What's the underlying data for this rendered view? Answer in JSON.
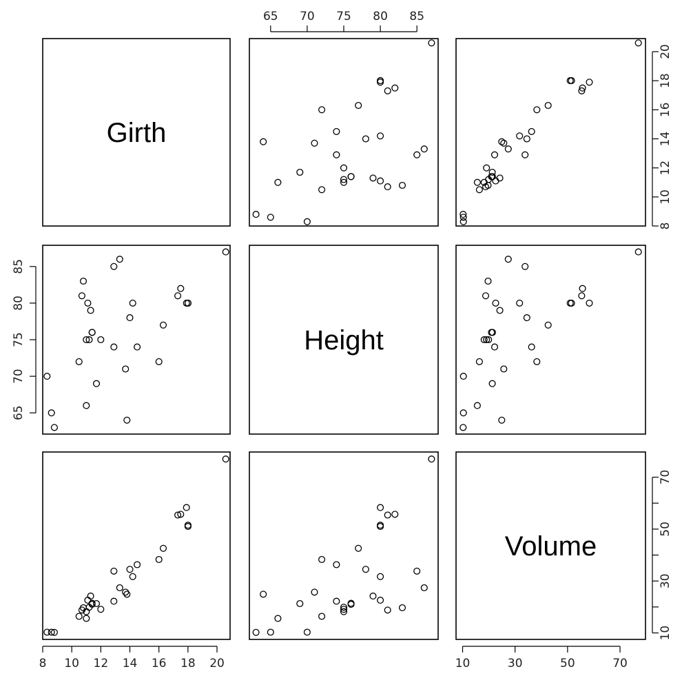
{
  "chart_data": {
    "type": "scatter",
    "variables": [
      "Girth",
      "Height",
      "Volume"
    ],
    "data": {
      "Girth": [
        8.3,
        8.6,
        8.8,
        10.5,
        10.7,
        10.8,
        11.0,
        11.0,
        11.1,
        11.2,
        11.3,
        11.4,
        11.4,
        11.7,
        12.0,
        12.9,
        12.9,
        13.3,
        13.7,
        13.8,
        14.0,
        14.2,
        14.5,
        16.0,
        16.3,
        17.3,
        17.5,
        17.9,
        18.0,
        18.0,
        20.6
      ],
      "Height": [
        70,
        65,
        63,
        72,
        81,
        83,
        66,
        75,
        80,
        75,
        79,
        76,
        76,
        69,
        75,
        74,
        85,
        86,
        71,
        64,
        78,
        80,
        74,
        72,
        77,
        81,
        82,
        80,
        80,
        80,
        87
      ],
      "Volume": [
        10.3,
        10.3,
        10.2,
        16.4,
        18.8,
        19.7,
        15.6,
        18.2,
        22.6,
        19.9,
        24.2,
        21.0,
        21.4,
        21.3,
        19.1,
        22.2,
        33.8,
        27.4,
        25.7,
        24.9,
        34.5,
        31.7,
        36.3,
        38.3,
        42.6,
        55.4,
        55.7,
        58.3,
        51.5,
        51.0,
        77.0
      ]
    },
    "axes": {
      "Girth": {
        "ticks": [
          "8",
          "10",
          "12",
          "14",
          "16",
          "18",
          "20"
        ],
        "tick_values": [
          8,
          10,
          12,
          14,
          16,
          18,
          20
        ],
        "range": [
          8.0,
          20.9
        ]
      },
      "Height": {
        "ticks": [
          "65",
          "70",
          "75",
          "80",
          "85"
        ],
        "tick_values": [
          65,
          70,
          75,
          80,
          85
        ],
        "range": [
          62.1,
          87.9
        ]
      },
      "Volume": {
        "ticks": [
          "10",
          "30",
          "50",
          "70"
        ],
        "tick_values": [
          10,
          30,
          50,
          70
        ],
        "range": [
          7.5,
          79.7
        ]
      },
      "Volume_right_ticks": {
        "ticks": [
          "10",
          "20",
          "30",
          "40",
          "50",
          "60",
          "70"
        ],
        "tick_values": [
          10,
          20,
          30,
          40,
          50,
          60,
          70
        ]
      }
    },
    "grid": false,
    "legend": "none"
  }
}
